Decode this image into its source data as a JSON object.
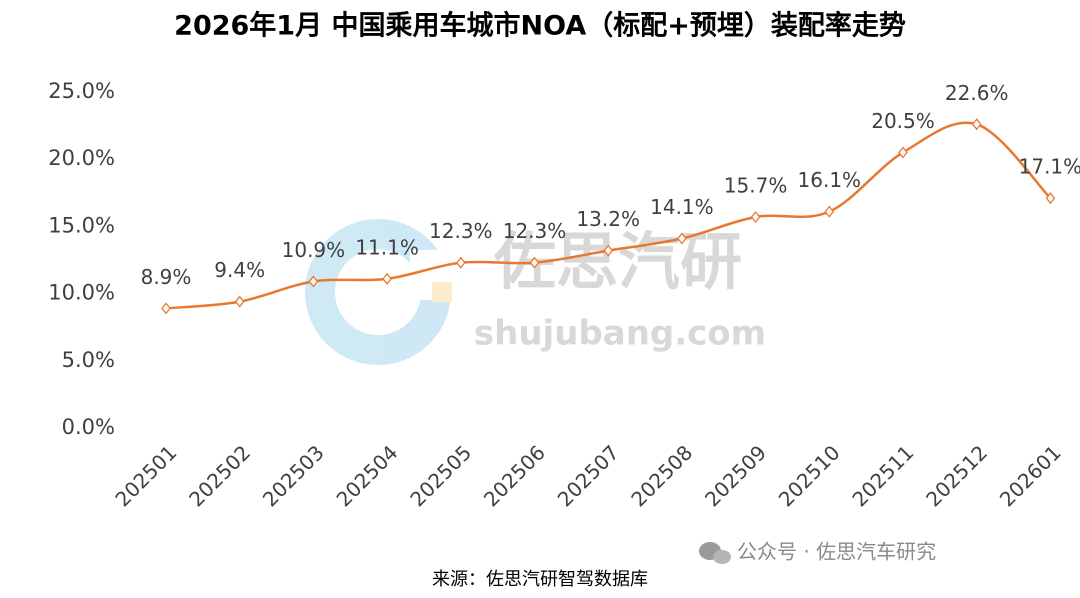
{
  "chart_data": {
    "type": "line",
    "title": "2026年1月 中国乘用车城市NOA（标配+预埋）装配率走势",
    "categories": [
      "202501",
      "202502",
      "202503",
      "202504",
      "202505",
      "202506",
      "202507",
      "202508",
      "202509",
      "202510",
      "202511",
      "202512",
      "202601"
    ],
    "values": [
      8.9,
      9.4,
      10.9,
      11.1,
      12.3,
      12.3,
      13.2,
      14.1,
      15.7,
      16.1,
      20.5,
      22.6,
      17.1
    ],
    "value_labels": [
      "8.9%",
      "9.4%",
      "10.9%",
      "11.1%",
      "12.3%",
      "12.3%",
      "13.2%",
      "14.1%",
      "15.7%",
      "16.1%",
      "20.5%",
      "22.6%",
      "17.1%"
    ],
    "color": "#e8782f",
    "ylim": [
      0,
      25
    ],
    "yticks": [
      {
        "value": 0,
        "label": "0.0%"
      },
      {
        "value": 5,
        "label": "5.0%"
      },
      {
        "value": 10,
        "label": "10.0%"
      },
      {
        "value": 15,
        "label": "15.0%"
      },
      {
        "value": 20,
        "label": "20.0%"
      },
      {
        "value": 25,
        "label": "25.0%"
      }
    ],
    "grid": false,
    "source": "来源：佐思汽研智驾数据库",
    "watermark": [
      "佐思汽研",
      "shujubang.com"
    ],
    "badge": "公众号 · 佐思汽车研究"
  }
}
